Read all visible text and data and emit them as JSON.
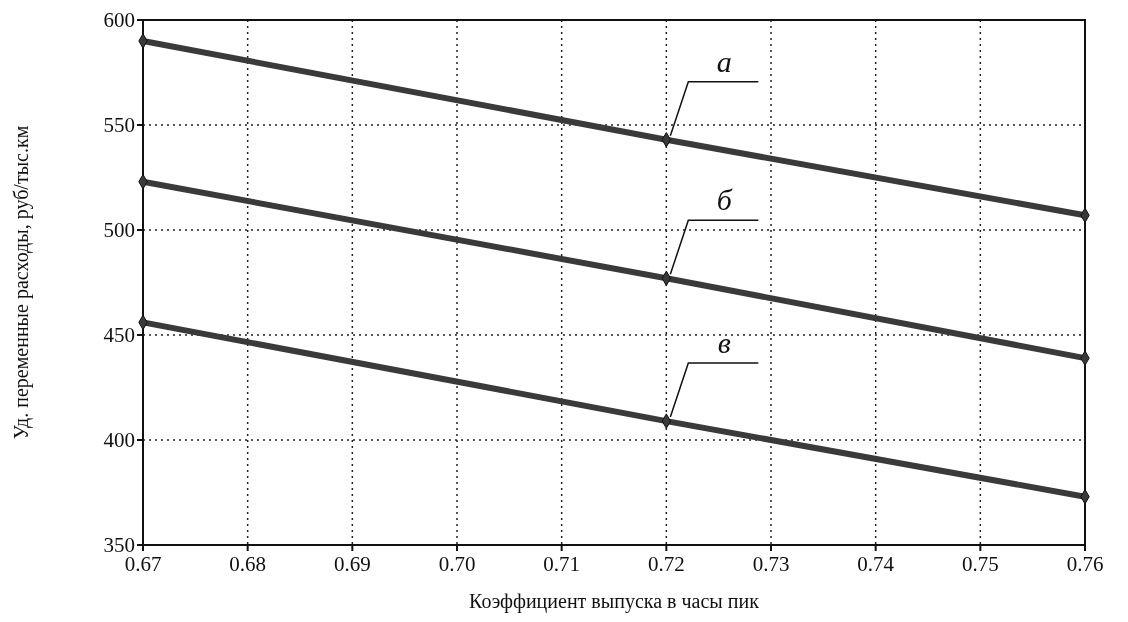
{
  "chart_data": {
    "type": "line",
    "xlabel": "Коэффициент выпуска в часы пик",
    "ylabel": "Уд. переменные расходы, руб/тыс.км",
    "x": [
      0.67,
      0.72,
      0.76
    ],
    "series": [
      {
        "name": "а",
        "color": "#3a3a3a",
        "values": [
          590,
          543,
          507
        ]
      },
      {
        "name": "б",
        "color": "#3a3a3a",
        "values": [
          523,
          477,
          439
        ]
      },
      {
        "name": "в",
        "color": "#3a3a3a",
        "values": [
          456,
          409,
          373
        ]
      }
    ],
    "xlim": [
      0.67,
      0.76
    ],
    "xticks": [
      {
        "value": 0.67,
        "label": "0.67"
      },
      {
        "value": 0.68,
        "label": "0.68"
      },
      {
        "value": 0.69,
        "label": "0.69"
      },
      {
        "value": 0.7,
        "label": "0.70"
      },
      {
        "value": 0.71,
        "label": "0.71"
      },
      {
        "value": 0.72,
        "label": "0.72"
      },
      {
        "value": 0.73,
        "label": "0.73"
      },
      {
        "value": 0.74,
        "label": "0.74"
      },
      {
        "value": 0.75,
        "label": "0.75"
      },
      {
        "value": 0.76,
        "label": "0.76"
      }
    ],
    "ylim": [
      350,
      600
    ],
    "yticks": [
      350,
      400,
      450,
      500,
      550,
      600
    ],
    "grid": true,
    "marker": "diamond",
    "line_style": "solid"
  }
}
